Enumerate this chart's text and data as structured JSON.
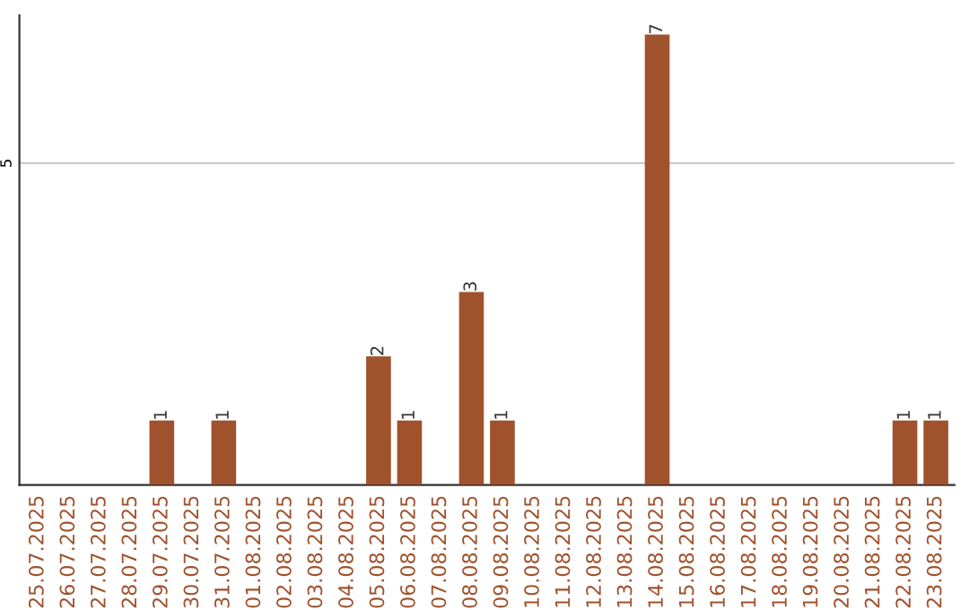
{
  "chart_data": {
    "type": "bar",
    "categories": [
      "25.07.2025",
      "26.07.2025",
      "27.07.2025",
      "28.07.2025",
      "29.07.2025",
      "30.07.2025",
      "31.07.2025",
      "01.08.2025",
      "02.08.2025",
      "03.08.2025",
      "04.08.2025",
      "05.08.2025",
      "06.08.2025",
      "07.08.2025",
      "08.08.2025",
      "09.08.2025",
      "10.08.2025",
      "11.08.2025",
      "12.08.2025",
      "13.08.2025",
      "14.08.2025",
      "15.08.2025",
      "16.08.2025",
      "17.08.2025",
      "18.08.2025",
      "19.08.2025",
      "20.08.2025",
      "21.08.2025",
      "22.08.2025",
      "23.08.2025"
    ],
    "values": [
      0,
      0,
      0,
      0,
      1,
      0,
      1,
      0,
      0,
      0,
      0,
      2,
      1,
      0,
      3,
      1,
      0,
      0,
      0,
      0,
      7,
      0,
      0,
      0,
      0,
      0,
      0,
      0,
      1,
      1
    ],
    "value_labels": [
      null,
      null,
      null,
      null,
      "1",
      null,
      "1",
      null,
      null,
      null,
      null,
      "2",
      "1",
      null,
      "3",
      "1",
      null,
      null,
      null,
      null,
      "7",
      null,
      null,
      null,
      null,
      null,
      null,
      null,
      "1",
      "1"
    ],
    "color": "#a0522d",
    "ylim": [
      0,
      7.3
    ],
    "yticks": [
      5
    ],
    "grid": "y",
    "legend": false
  }
}
